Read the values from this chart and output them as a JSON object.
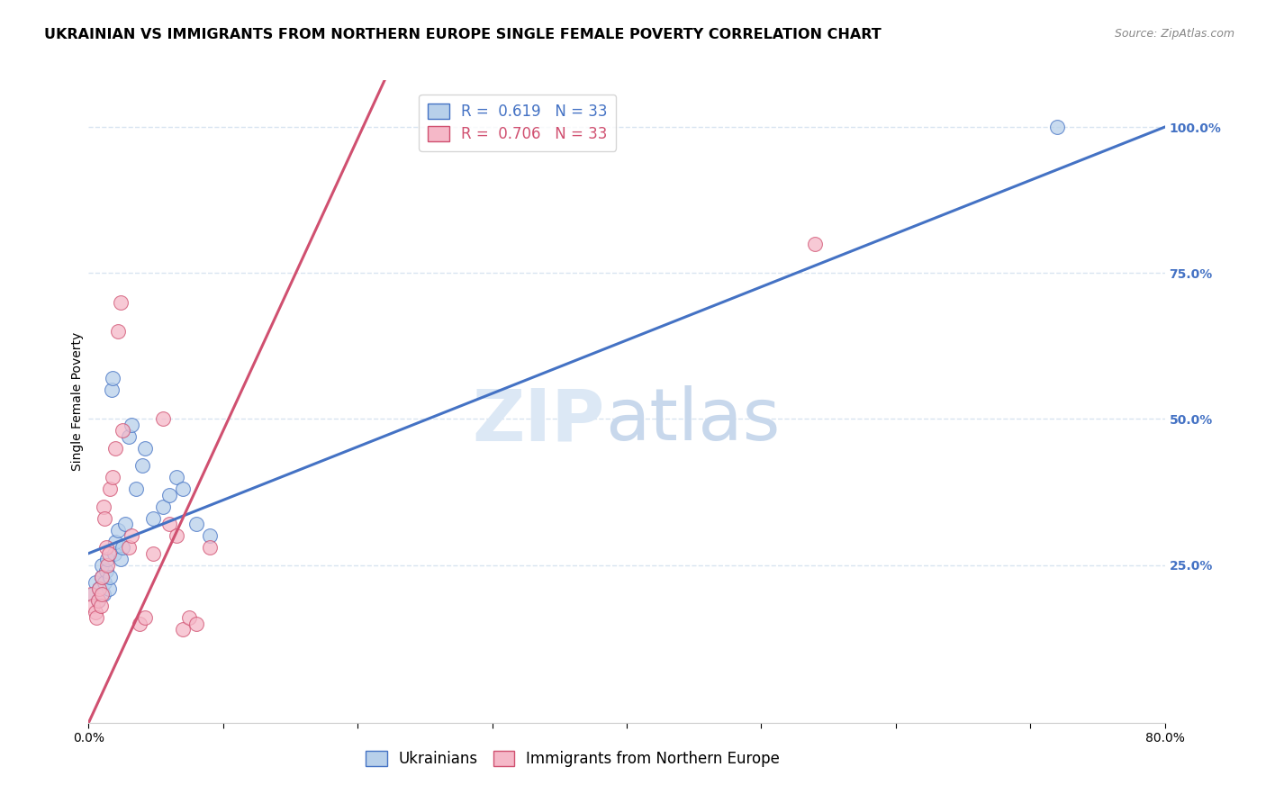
{
  "title": "UKRAINIAN VS IMMIGRANTS FROM NORTHERN EUROPE SINGLE FEMALE POVERTY CORRELATION CHART",
  "source": "Source: ZipAtlas.com",
  "ylabel": "Single Female Poverty",
  "watermark_zip": "ZIP",
  "watermark_atlas": "atlas",
  "xlim": [
    0.0,
    0.8
  ],
  "ylim": [
    -0.02,
    1.08
  ],
  "xtick_positions": [
    0.0,
    0.1,
    0.2,
    0.3,
    0.4,
    0.5,
    0.6,
    0.7,
    0.8
  ],
  "xtick_labels": [
    "0.0%",
    "",
    "",
    "",
    "",
    "",
    "",
    "",
    "80.0%"
  ],
  "ytick_right": [
    0.25,
    0.5,
    0.75,
    1.0
  ],
  "ytick_right_labels": [
    "25.0%",
    "50.0%",
    "75.0%",
    "100.0%"
  ],
  "blue_color": "#b8d0ea",
  "pink_color": "#f5b8c8",
  "blue_line_color": "#4472C4",
  "pink_line_color": "#d05070",
  "legend_blue": "R =  0.619   N = 33",
  "legend_pink": "R =  0.706   N = 33",
  "blue_scatter_x": [
    0.003,
    0.005,
    0.007,
    0.008,
    0.01,
    0.01,
    0.011,
    0.012,
    0.013,
    0.014,
    0.015,
    0.016,
    0.017,
    0.018,
    0.019,
    0.02,
    0.022,
    0.024,
    0.025,
    0.027,
    0.03,
    0.032,
    0.035,
    0.04,
    0.042,
    0.048,
    0.055,
    0.06,
    0.065,
    0.07,
    0.08,
    0.09,
    0.72
  ],
  "blue_scatter_y": [
    0.2,
    0.22,
    0.19,
    0.21,
    0.23,
    0.25,
    0.2,
    0.22,
    0.24,
    0.26,
    0.21,
    0.23,
    0.55,
    0.57,
    0.27,
    0.29,
    0.31,
    0.26,
    0.28,
    0.32,
    0.47,
    0.49,
    0.38,
    0.42,
    0.45,
    0.33,
    0.35,
    0.37,
    0.4,
    0.38,
    0.32,
    0.3,
    1.0
  ],
  "pink_scatter_x": [
    0.002,
    0.003,
    0.005,
    0.006,
    0.007,
    0.008,
    0.009,
    0.01,
    0.01,
    0.011,
    0.012,
    0.013,
    0.014,
    0.015,
    0.016,
    0.018,
    0.02,
    0.022,
    0.024,
    0.025,
    0.03,
    0.032,
    0.038,
    0.042,
    0.048,
    0.055,
    0.06,
    0.065,
    0.07,
    0.075,
    0.08,
    0.09,
    0.54
  ],
  "pink_scatter_y": [
    0.2,
    0.18,
    0.17,
    0.16,
    0.19,
    0.21,
    0.18,
    0.23,
    0.2,
    0.35,
    0.33,
    0.28,
    0.25,
    0.27,
    0.38,
    0.4,
    0.45,
    0.65,
    0.7,
    0.48,
    0.28,
    0.3,
    0.15,
    0.16,
    0.27,
    0.5,
    0.32,
    0.3,
    0.14,
    0.16,
    0.15,
    0.28,
    0.8
  ],
  "blue_line_x0": 0.0,
  "blue_line_x1": 0.8,
  "blue_line_y0": 0.27,
  "blue_line_y1": 1.0,
  "pink_line_x0": 0.0,
  "pink_line_x1": 0.22,
  "pink_line_y0": -0.02,
  "pink_line_y1": 1.08,
  "grid_color": "#d8e4f0",
  "background_color": "#ffffff",
  "title_fontsize": 11.5,
  "source_fontsize": 9,
  "axis_label_fontsize": 10,
  "tick_fontsize": 10,
  "legend_fontsize": 12,
  "right_tick_color": "#4472C4",
  "watermark_color": "#dce8f5"
}
